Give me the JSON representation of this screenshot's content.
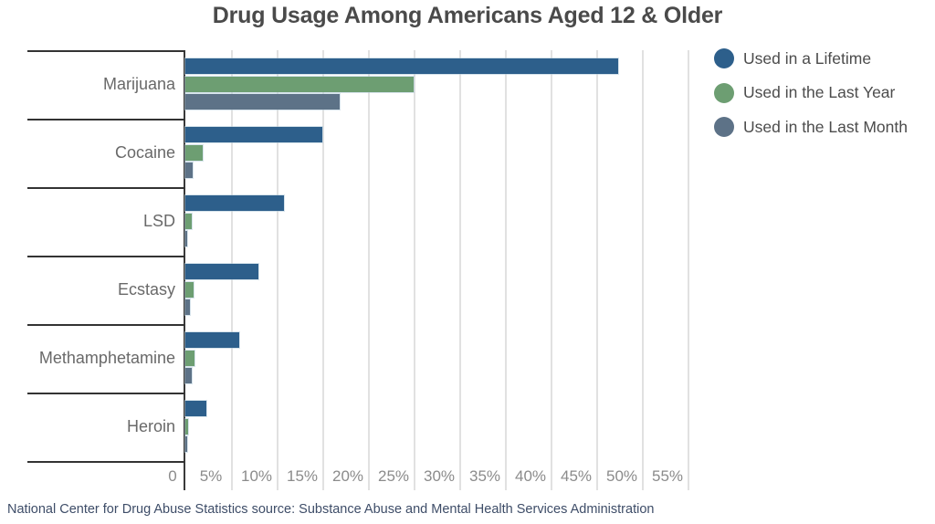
{
  "title": "Drug Usage Among Americans Aged 12 & Older",
  "footer": "National Center for Drug Abuse Statistics source: Substance Abuse and Mental Health Services Administration",
  "legend": {
    "position": "top-right",
    "items": [
      "Used in a Lifetime",
      "Used in the Last Year",
      "Used in the Last Month"
    ]
  },
  "chart_data": {
    "type": "bar",
    "orientation": "horizontal",
    "title": "Drug Usage Among Americans Aged 12 & Older",
    "categories": [
      "Marijuana",
      "Cocaine",
      "LSD",
      "Ecstasy",
      "Methamphetamine",
      "Heroin"
    ],
    "series": [
      {
        "name": "Used in a Lifetime",
        "color": "#2d5f8b",
        "values": [
          47.4,
          15.0,
          10.8,
          8.0,
          5.9,
          2.3
        ]
      },
      {
        "name": "Used in the Last Year",
        "color": "#6d9e72",
        "values": [
          25.0,
          1.9,
          0.7,
          0.9,
          1.0,
          0.3
        ]
      },
      {
        "name": "Used in the Last Month",
        "color": "#5d7287",
        "values": [
          16.9,
          0.8,
          0.2,
          0.5,
          0.7,
          0.2
        ]
      }
    ],
    "x_ticks": [
      "0",
      "5%",
      "10%",
      "15%",
      "20%",
      "25%",
      "30%",
      "35%",
      "40%",
      "45%",
      "50%",
      "55%"
    ],
    "x_tick_values": [
      0,
      5,
      10,
      15,
      20,
      25,
      30,
      35,
      40,
      45,
      50,
      55
    ],
    "xlim": [
      0,
      56
    ],
    "unit": "%",
    "grid": "vertical",
    "legend_position": "top-right",
    "colors": {
      "axis": "#3a3a3a",
      "gridline": "#e1e1e1",
      "title_text": "#4a4a4a",
      "category_text": "#696969",
      "tick_text": "#8b8b8b",
      "footer_text": "#3e4d68"
    }
  }
}
